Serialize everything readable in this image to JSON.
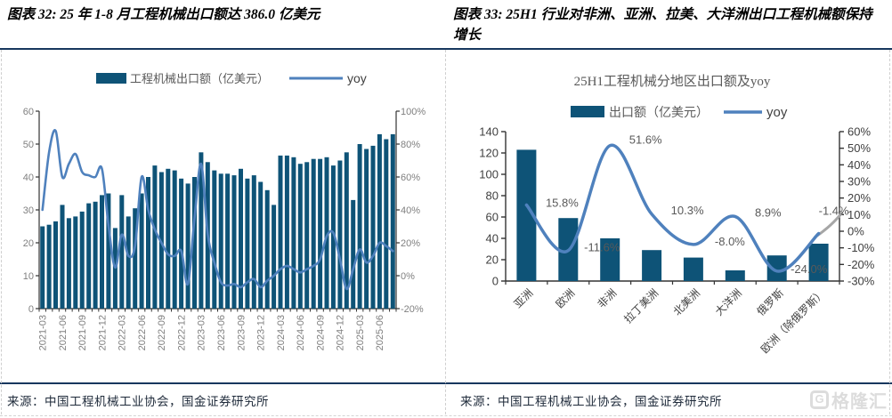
{
  "panels": [
    {
      "title": "图表 32: 25 年 1-8 月工程机械出口额达 386.0 亿美元",
      "source": "来源：中国工程机械工业协会，国金证券研究所"
    },
    {
      "title": "图表 33: 25H1 行业对非洲、亚洲、拉美、大洋洲出口工程机械额保持增长",
      "source": "来源：中国工程机械工业协会，国金证券研究所"
    }
  ],
  "watermark": {
    "brand": "格隆汇",
    "icon_letter": "G"
  },
  "colors": {
    "bar": "#0e5377",
    "line": "#4f81bd",
    "line_tail": "#a6a6a6",
    "axis": "#333333",
    "tick": "#7f7f7f",
    "label": "#595959",
    "rule": "#17375e"
  },
  "chart_data": [
    {
      "type": "bar+line",
      "title": "",
      "legend_position": "top",
      "x": [
        "2021-03",
        "2021-04",
        "2021-05",
        "2021-06",
        "2021-07",
        "2021-08",
        "2021-09",
        "2021-10",
        "2021-11",
        "2021-12",
        "2022-01",
        "2022-02",
        "2022-03",
        "2022-04",
        "2022-05",
        "2022-06",
        "2022-07",
        "2022-08",
        "2022-09",
        "2022-10",
        "2022-11",
        "2022-12",
        "2023-01",
        "2023-02",
        "2023-03",
        "2023-04",
        "2023-05",
        "2023-06",
        "2023-07",
        "2023-08",
        "2023-09",
        "2023-10",
        "2023-11",
        "2023-12",
        "2024-01",
        "2024-02",
        "2024-03",
        "2024-04",
        "2024-05",
        "2024-06",
        "2024-07",
        "2024-08",
        "2024-09",
        "2024-10",
        "2024-11",
        "2024-12",
        "2025-01",
        "2025-02",
        "2025-03",
        "2025-04",
        "2025-05",
        "2025-06",
        "2025-07",
        "2025-08"
      ],
      "x_tick_labels": [
        "2021-03",
        "2021-06",
        "2021-09",
        "2021-12",
        "2022-03",
        "2022-06",
        "2022-09",
        "2022-12",
        "2023-03",
        "2023-06",
        "2023-09",
        "2023-12",
        "2024-03",
        "2024-06",
        "2024-09",
        "2024-12",
        "2025-03",
        "2025-06"
      ],
      "series": [
        {
          "name": "工程机械出口额（亿美元）",
          "type": "bar",
          "axis": "left",
          "values": [
            25,
            25.5,
            26.5,
            31.5,
            27.5,
            28,
            29.5,
            32,
            32.5,
            34.5,
            35,
            24.5,
            34.5,
            28,
            30.5,
            35,
            40,
            43.5,
            41.5,
            42.5,
            42,
            39.5,
            38,
            40,
            47.5,
            44.5,
            42,
            41,
            41,
            40.5,
            42.5,
            39.5,
            40.5,
            38.5,
            36,
            31.5,
            46.5,
            46.5,
            46,
            44,
            44.5,
            45.5,
            45.5,
            46,
            43.5,
            45,
            47.5,
            33,
            50,
            48.5,
            49.5,
            53,
            51.5,
            53
          ]
        },
        {
          "name": "yoy",
          "type": "line",
          "axis": "right",
          "unit": "%",
          "values": [
            40,
            75,
            88,
            60,
            68,
            74,
            63,
            61,
            60,
            65,
            30,
            5,
            25,
            12,
            18,
            60,
            40,
            28,
            20,
            13,
            12,
            15,
            -5,
            35,
            68,
            25,
            8,
            -4,
            -6,
            -5,
            -7,
            -4,
            -2,
            -7,
            -3,
            0,
            4,
            6,
            4,
            2,
            4,
            6,
            10,
            24,
            26,
            10,
            -8,
            4,
            16,
            8,
            12,
            20,
            18,
            15
          ]
        }
      ],
      "left_axis": {
        "min": 0,
        "max": 60,
        "step": 10
      },
      "right_axis": {
        "min": -20,
        "max": 100,
        "step": 20,
        "suffix": "%"
      }
    },
    {
      "type": "bar+line",
      "title": "25H1工程机械分地区出口额及yoy",
      "legend_position": "top",
      "categories": [
        "亚洲",
        "欧洲",
        "非洲",
        "拉丁美洲",
        "北美洲",
        "大洋洲",
        "俄罗斯",
        "欧洲（除俄罗斯）"
      ],
      "series": [
        {
          "name": "出口额（亿美元）",
          "type": "bar",
          "axis": "left",
          "values": [
            123,
            59,
            40,
            29,
            22,
            10,
            24,
            35
          ]
        },
        {
          "name": "yoy",
          "type": "line",
          "axis": "right",
          "unit": "%",
          "values": [
            15.8,
            -11.6,
            51.6,
            10.3,
            -8.0,
            8.9,
            -24.0,
            -1.4
          ],
          "labels": [
            "15.8%",
            "-11.6%",
            "51.6%",
            "10.3%",
            "-8.0%",
            "8.9%",
            "-24.0%",
            "-1.4%"
          ]
        }
      ],
      "left_axis": {
        "min": 0,
        "max": 140,
        "step": 20
      },
      "right_axis": {
        "min": -30,
        "max": 60,
        "step": 10,
        "suffix": "%"
      }
    }
  ]
}
